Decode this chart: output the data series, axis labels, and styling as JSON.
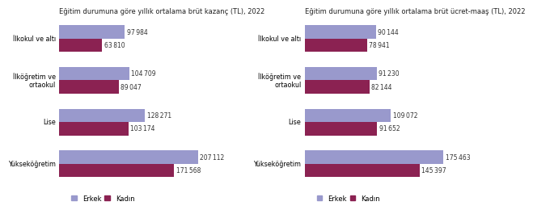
{
  "chart1": {
    "title": "Eğitim durumuna göre yıllık ortalama brüt kazanç (TL), 2022",
    "categories": [
      "İlkokul ve altı",
      "İlköğretim ve\nortaokul",
      "Lise",
      "Yükseköğretim"
    ],
    "erkek": [
      97984,
      104709,
      128271,
      207112
    ],
    "kadin": [
      63810,
      89047,
      103174,
      171568
    ]
  },
  "chart2": {
    "title": "Eğitim durumuna göre yıllık ortalama brüt ücret-maaş (TL), 2022",
    "categories": [
      "İlkokul ve altı",
      "İlköğretim ve\nortaokul",
      "Lise",
      "Yükseköğretim"
    ],
    "erkek": [
      90144,
      91230,
      109072,
      175463
    ],
    "kadin": [
      78941,
      82144,
      91652,
      145397
    ]
  },
  "color_erkek": "#9999cc",
  "color_kadin": "#8B2252",
  "label_erkek": "Erkek",
  "label_kadin": "Kadın",
  "bg_color": "#ffffff",
  "bar_height": 0.32,
  "fontsize_title": 6.0,
  "fontsize_labels": 5.8,
  "fontsize_values": 5.5,
  "fontsize_legend": 6.0
}
